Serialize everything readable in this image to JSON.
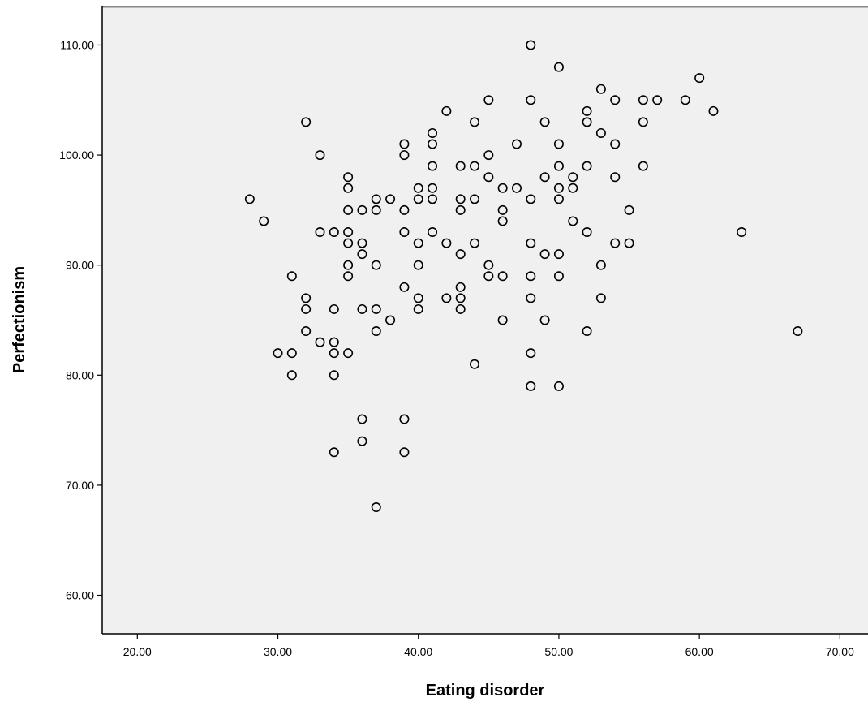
{
  "chart_data": {
    "type": "scatter",
    "title": "",
    "xlabel": "Eating disorder",
    "ylabel": "Perfectionism",
    "xlim": [
      17.5,
      72
    ],
    "ylim": [
      56.5,
      113.5
    ],
    "x_ticks": [
      "20.00",
      "30.00",
      "40.00",
      "50.00",
      "60.00",
      "70.00"
    ],
    "x_tick_values": [
      20,
      30,
      40,
      50,
      60,
      70
    ],
    "y_ticks": [
      "60.00",
      "70.00",
      "80.00",
      "90.00",
      "100.00",
      "110.00"
    ],
    "y_tick_values": [
      60,
      70,
      80,
      90,
      100,
      110
    ],
    "grid": false,
    "colors": {
      "plot_background": "#f0f0f0",
      "marker": "#000000",
      "axis": "#000000",
      "frame": "#888888"
    },
    "points": [
      [
        28,
        96
      ],
      [
        29,
        94
      ],
      [
        30,
        82
      ],
      [
        31,
        89
      ],
      [
        31,
        82
      ],
      [
        31,
        80
      ],
      [
        32,
        103
      ],
      [
        32,
        87
      ],
      [
        32,
        86
      ],
      [
        32,
        84
      ],
      [
        33,
        100
      ],
      [
        33,
        93
      ],
      [
        33,
        83
      ],
      [
        34,
        93
      ],
      [
        34,
        86
      ],
      [
        34,
        83
      ],
      [
        34,
        82
      ],
      [
        34,
        80
      ],
      [
        34,
        73
      ],
      [
        35,
        98
      ],
      [
        35,
        97
      ],
      [
        35,
        95
      ],
      [
        35,
        93
      ],
      [
        35,
        92
      ],
      [
        35,
        90
      ],
      [
        35,
        89
      ],
      [
        35,
        82
      ],
      [
        36,
        95
      ],
      [
        36,
        92
      ],
      [
        36,
        91
      ],
      [
        36,
        86
      ],
      [
        36,
        76
      ],
      [
        36,
        74
      ],
      [
        37,
        96
      ],
      [
        37,
        95
      ],
      [
        37,
        90
      ],
      [
        37,
        86
      ],
      [
        37,
        84
      ],
      [
        37,
        68
      ],
      [
        38,
        96
      ],
      [
        38,
        85
      ],
      [
        39,
        101
      ],
      [
        39,
        100
      ],
      [
        39,
        95
      ],
      [
        39,
        93
      ],
      [
        39,
        88
      ],
      [
        39,
        76
      ],
      [
        39,
        73
      ],
      [
        40,
        97
      ],
      [
        40,
        96
      ],
      [
        40,
        92
      ],
      [
        40,
        90
      ],
      [
        40,
        87
      ],
      [
        40,
        86
      ],
      [
        41,
        102
      ],
      [
        41,
        101
      ],
      [
        41,
        99
      ],
      [
        41,
        97
      ],
      [
        41,
        96
      ],
      [
        41,
        93
      ],
      [
        42,
        104
      ],
      [
        42,
        92
      ],
      [
        42,
        87
      ],
      [
        43,
        99
      ],
      [
        43,
        96
      ],
      [
        43,
        95
      ],
      [
        43,
        91
      ],
      [
        43,
        88
      ],
      [
        43,
        87
      ],
      [
        43,
        86
      ],
      [
        44,
        103
      ],
      [
        44,
        99
      ],
      [
        44,
        96
      ],
      [
        44,
        92
      ],
      [
        44,
        81
      ],
      [
        45,
        105
      ],
      [
        45,
        100
      ],
      [
        45,
        98
      ],
      [
        45,
        90
      ],
      [
        45,
        89
      ],
      [
        46,
        97
      ],
      [
        46,
        95
      ],
      [
        46,
        94
      ],
      [
        46,
        89
      ],
      [
        46,
        85
      ],
      [
        47,
        101
      ],
      [
        47,
        97
      ],
      [
        48,
        110
      ],
      [
        48,
        105
      ],
      [
        48,
        96
      ],
      [
        48,
        92
      ],
      [
        48,
        89
      ],
      [
        48,
        87
      ],
      [
        48,
        82
      ],
      [
        48,
        79
      ],
      [
        49,
        103
      ],
      [
        49,
        98
      ],
      [
        49,
        91
      ],
      [
        49,
        85
      ],
      [
        50,
        108
      ],
      [
        50,
        101
      ],
      [
        50,
        99
      ],
      [
        50,
        97
      ],
      [
        50,
        96
      ],
      [
        50,
        91
      ],
      [
        50,
        89
      ],
      [
        50,
        79
      ],
      [
        51,
        98
      ],
      [
        51,
        97
      ],
      [
        51,
        94
      ],
      [
        52,
        104
      ],
      [
        52,
        103
      ],
      [
        52,
        99
      ],
      [
        52,
        93
      ],
      [
        52,
        84
      ],
      [
        53,
        106
      ],
      [
        53,
        102
      ],
      [
        53,
        90
      ],
      [
        53,
        87
      ],
      [
        54,
        105
      ],
      [
        54,
        101
      ],
      [
        54,
        98
      ],
      [
        54,
        92
      ],
      [
        55,
        95
      ],
      [
        55,
        92
      ],
      [
        56,
        105
      ],
      [
        56,
        103
      ],
      [
        56,
        99
      ],
      [
        57,
        105
      ],
      [
        59,
        105
      ],
      [
        60,
        107
      ],
      [
        61,
        104
      ],
      [
        63,
        93
      ],
      [
        67,
        84
      ]
    ]
  }
}
